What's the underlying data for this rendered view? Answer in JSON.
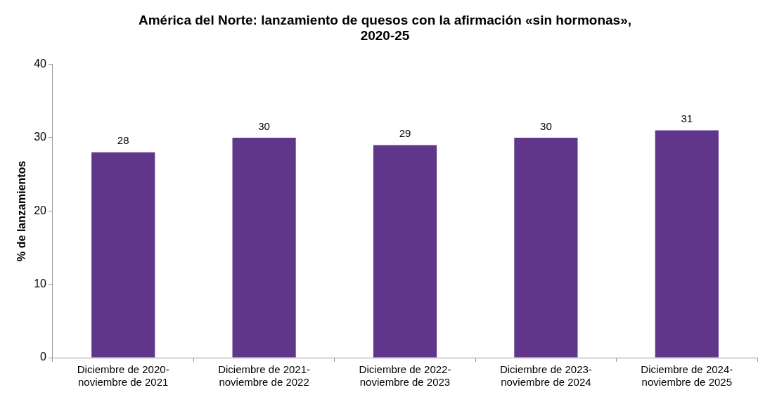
{
  "chart_data": {
    "type": "bar",
    "title": "América del Norte: lanzamiento de quesos con la afirmación «sin hormonas», 2020-25",
    "ylabel": "% de lanzamientos",
    "categories": [
      "Diciembre de 2020-\nnoviembre de 2021",
      "Diciembre de 2021-\nnoviembre de 2022",
      "Diciembre de 2022-\nnoviembre de 2023",
      "Diciembre de 2023-\nnoviembre de 2024",
      "Diciembre de 2024-\nnoviembre de 2025"
    ],
    "values": [
      28,
      30,
      29,
      30,
      31
    ],
    "color": "#5f3689",
    "ylim": [
      0,
      40
    ],
    "yticks": [
      0,
      10,
      20,
      30,
      40
    ],
    "grid": false,
    "legend": false,
    "data_labels": true
  }
}
